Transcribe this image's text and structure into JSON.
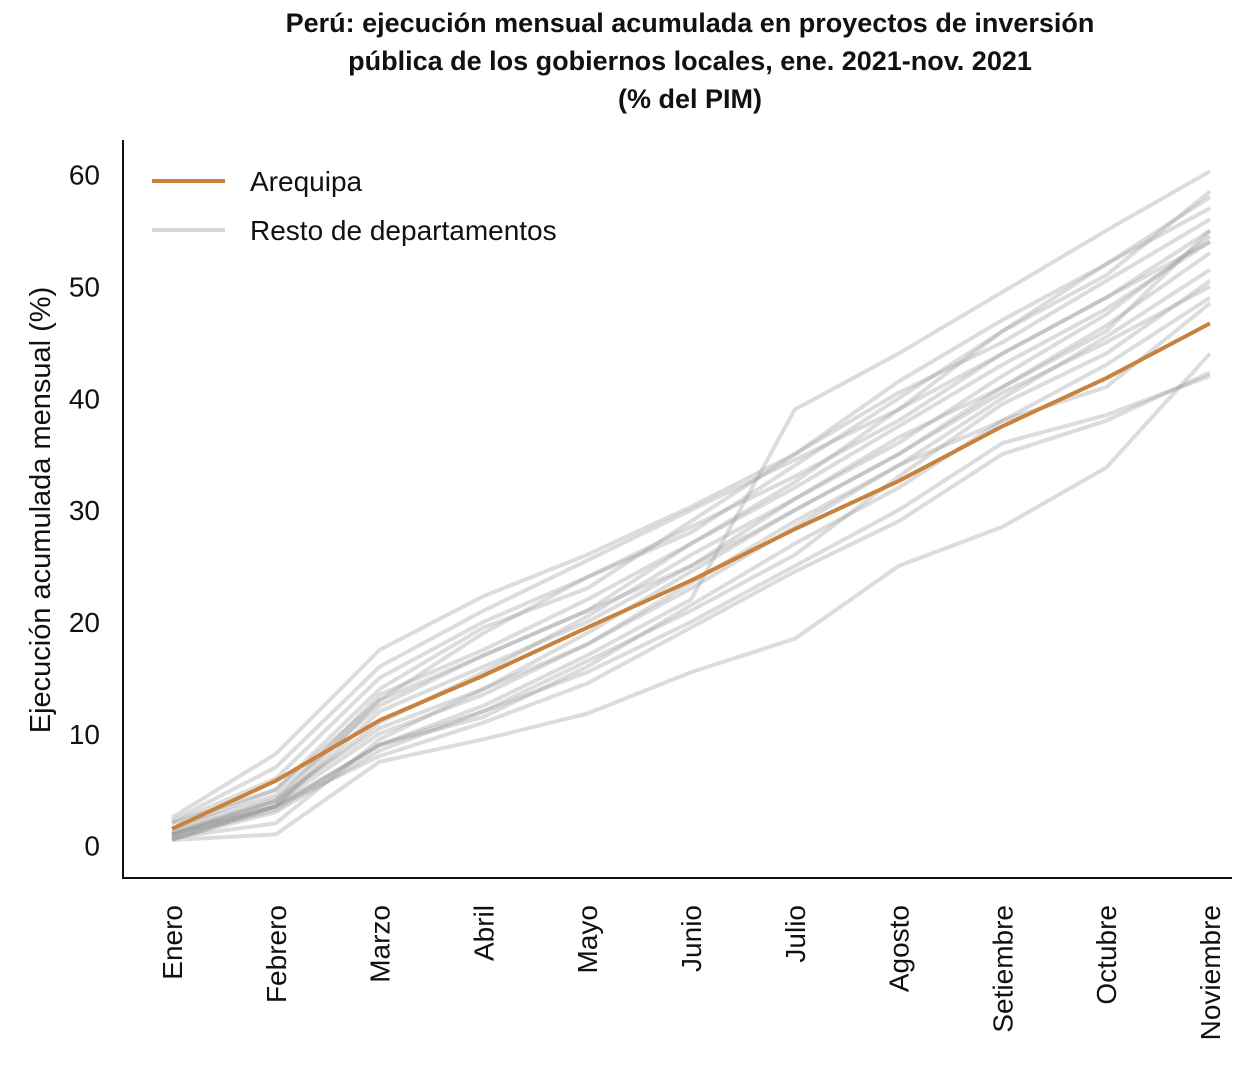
{
  "chart_data": {
    "type": "line",
    "title": [
      "Perú: ejecución mensual acumulada en proyectos de inversión",
      "pública de los gobiernos locales, ene. 2021-nov. 2021",
      "(% del PIM)"
    ],
    "y_label": "Ejecución acumulada mensual (%)",
    "categories": [
      "Enero",
      "Febrero",
      "Marzo",
      "Abril",
      "Mayo",
      "Junio",
      "Julio",
      "Agosto",
      "Setiembre",
      "Octubre",
      "Noviembre"
    ],
    "series": [
      {
        "name": "Arequipa",
        "color": "#c8813e",
        "values": [
          1.5,
          5.8,
          11.2,
          15.2,
          19.5,
          23.7,
          28.3,
          32.6,
          37.5,
          41.8,
          46.7
        ]
      },
      {
        "name": "Resto de departamentos",
        "color": "#9a9a9a",
        "lines": [
          [
            2.5,
            8.2,
            17.5,
            22.3,
            26,
            30.3,
            35,
            41.5,
            47,
            52,
            57
          ],
          [
            2,
            6,
            15,
            20,
            24,
            28.5,
            33,
            38,
            44,
            49,
            55
          ],
          [
            1,
            4,
            13.5,
            17.5,
            22,
            27,
            32,
            37.5,
            43,
            48,
            54
          ],
          [
            0.5,
            3.5,
            9,
            11.5,
            16,
            21.5,
            27,
            32,
            38,
            43,
            49
          ],
          [
            0.5,
            3.5,
            8,
            11,
            14.5,
            19.5,
            24.5,
            29,
            35,
            38,
            42.3
          ],
          [
            0.5,
            1,
            7.5,
            9.5,
            11.8,
            15.5,
            18.5,
            25,
            28.5,
            33.8,
            44
          ],
          [
            1,
            3.5,
            9,
            12.5,
            17,
            22,
            39,
            44,
            49.5,
            55,
            60.3
          ],
          [
            1.5,
            4.5,
            12.5,
            17,
            21,
            25,
            30,
            35,
            40.5,
            45,
            50
          ],
          [
            1,
            3.8,
            10,
            13.5,
            18,
            23,
            28.5,
            34,
            40,
            45.5,
            51.5
          ],
          [
            0.8,
            3.2,
            9,
            12,
            15.5,
            20,
            25,
            30,
            36,
            38.5,
            42
          ],
          [
            2,
            5,
            13,
            19,
            24,
            28,
            34,
            40,
            46,
            52,
            58
          ],
          [
            1.2,
            4,
            11,
            15.5,
            20.5,
            26,
            31,
            36.5,
            41,
            46.5,
            53
          ],
          [
            0.7,
            2,
            9.5,
            14,
            18,
            23.5,
            29,
            34,
            38,
            41,
            48.5
          ],
          [
            1.5,
            5,
            14,
            19.5,
            23,
            29,
            35,
            40.5,
            45,
            50.5,
            56
          ],
          [
            1,
            3.5,
            12,
            16,
            20,
            25,
            31,
            36,
            42,
            47.5,
            54.5
          ],
          [
            0.6,
            3,
            8.5,
            12,
            16.5,
            21,
            26,
            33,
            39.5,
            44,
            50.5
          ],
          [
            2.2,
            7,
            16,
            21,
            25.5,
            30,
            34.5,
            39,
            44,
            49,
            54
          ],
          [
            0.9,
            3.5,
            13,
            17,
            21,
            27,
            32.5,
            39,
            46,
            51,
            58.5
          ],
          [
            1.1,
            4.2,
            10.5,
            14,
            19,
            24.5,
            30,
            35,
            41,
            46,
            55
          ]
        ]
      }
    ],
    "ylim": [
      -2.9,
      63.1
    ],
    "yticks": [
      0,
      10,
      20,
      30,
      40,
      50,
      60
    ],
    "grid": false,
    "legend": "upper left"
  }
}
